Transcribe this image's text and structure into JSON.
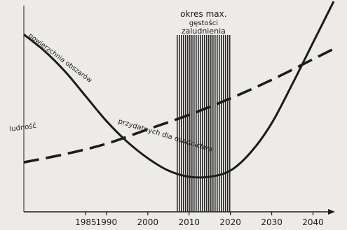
{
  "colors": {
    "paper": "#ecebe7",
    "ink": "#1c1c1c",
    "hatch": "#2a2a2a"
  },
  "chart_data": {
    "type": "line",
    "title": "",
    "xlabel": "",
    "ylabel": "",
    "grid": false,
    "tick_labels": [
      "1985",
      "1990",
      "2000",
      "2010",
      "2020",
      "2030",
      "2040"
    ],
    "tick_values": [
      1985,
      1990,
      2000,
      2010,
      2020,
      2030,
      2040
    ],
    "xlim": [
      1970,
      2045
    ],
    "ylim": [
      0,
      100
    ],
    "band": {
      "label_lines": [
        "okres max.",
        "gęstości",
        "zaludnienia"
      ],
      "x_start": 2007,
      "x_end": 2020
    },
    "series": [
      {
        "name": "powierzchnia obszarów przydatnych dla osadnictwa",
        "style": "solid",
        "label_parts": [
          "powierzchnia obszarów",
          "przydatnych dla osadnictwa"
        ],
        "x": [
          1970,
          1975,
          1980,
          1985,
          1990,
          1995,
          2000,
          2005,
          2010,
          2015,
          2020,
          2025,
          2030,
          2035,
          2040,
          2045
        ],
        "y": [
          86,
          78,
          68,
          56,
          44,
          34,
          26,
          20,
          17,
          17,
          20,
          29,
          43,
          62,
          82,
          102
        ]
      },
      {
        "name": "ludność",
        "style": "dashed",
        "label_parts": [
          "ludność"
        ],
        "x": [
          1970,
          1980,
          1990,
          2000,
          2010,
          2020,
          2030,
          2040,
          2045
        ],
        "y": [
          24,
          28,
          33,
          40,
          47,
          55,
          64,
          74,
          79
        ]
      }
    ]
  }
}
